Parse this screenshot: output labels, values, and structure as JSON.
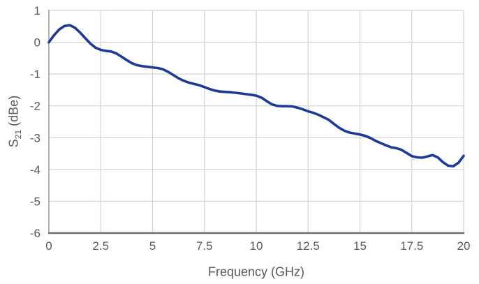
{
  "chart_data": {
    "type": "line",
    "title": "",
    "xlabel": "Frequency (GHz)",
    "ylabel_base": "S",
    "ylabel_sub": "21",
    "ylabel_rest": " (dBe)",
    "ylabel_text": "S21 (dBe)",
    "xlim": [
      0,
      20
    ],
    "ylim": [
      -6,
      1
    ],
    "x_ticks": [
      0,
      2.5,
      5,
      7.5,
      10,
      12.5,
      15,
      17.5,
      20
    ],
    "x_tick_labels": [
      "0",
      "2.5",
      "5",
      "7.5",
      "10",
      "12.5",
      "15",
      "17.5",
      "20"
    ],
    "y_ticks": [
      1,
      0,
      -1,
      -2,
      -3,
      -4,
      -5,
      -6
    ],
    "y_tick_labels": [
      "1",
      "0",
      "-1",
      "-2",
      "-3",
      "-4",
      "-5",
      "-6"
    ],
    "grid": true,
    "legend": "none",
    "series": [
      {
        "name": "S21",
        "points": [
          [
            0,
            0
          ],
          [
            0.25,
            0.22
          ],
          [
            0.5,
            0.4
          ],
          [
            0.75,
            0.51
          ],
          [
            1,
            0.54
          ],
          [
            1.25,
            0.46
          ],
          [
            1.5,
            0.31
          ],
          [
            1.75,
            0.13
          ],
          [
            2,
            -0.04
          ],
          [
            2.25,
            -0.17
          ],
          [
            2.5,
            -0.24
          ],
          [
            2.75,
            -0.27
          ],
          [
            3,
            -0.29
          ],
          [
            3.25,
            -0.35
          ],
          [
            3.5,
            -0.45
          ],
          [
            3.75,
            -0.56
          ],
          [
            4,
            -0.66
          ],
          [
            4.25,
            -0.72
          ],
          [
            4.5,
            -0.75
          ],
          [
            4.75,
            -0.77
          ],
          [
            5,
            -0.79
          ],
          [
            5.25,
            -0.81
          ],
          [
            5.5,
            -0.85
          ],
          [
            5.75,
            -0.93
          ],
          [
            6,
            -1.03
          ],
          [
            6.25,
            -1.13
          ],
          [
            6.5,
            -1.21
          ],
          [
            6.75,
            -1.27
          ],
          [
            7,
            -1.31
          ],
          [
            7.25,
            -1.35
          ],
          [
            7.5,
            -1.41
          ],
          [
            7.75,
            -1.47
          ],
          [
            8,
            -1.52
          ],
          [
            8.25,
            -1.55
          ],
          [
            8.5,
            -1.56
          ],
          [
            8.75,
            -1.57
          ],
          [
            9,
            -1.59
          ],
          [
            9.25,
            -1.61
          ],
          [
            9.5,
            -1.63
          ],
          [
            9.75,
            -1.65
          ],
          [
            10,
            -1.68
          ],
          [
            10.25,
            -1.74
          ],
          [
            10.5,
            -1.85
          ],
          [
            10.75,
            -1.95
          ],
          [
            11,
            -2
          ],
          [
            11.25,
            -2.01
          ],
          [
            11.5,
            -2.01
          ],
          [
            11.75,
            -2.02
          ],
          [
            12,
            -2.06
          ],
          [
            12.25,
            -2.11
          ],
          [
            12.5,
            -2.17
          ],
          [
            12.75,
            -2.22
          ],
          [
            13,
            -2.28
          ],
          [
            13.25,
            -2.36
          ],
          [
            13.5,
            -2.44
          ],
          [
            13.75,
            -2.57
          ],
          [
            14,
            -2.69
          ],
          [
            14.25,
            -2.78
          ],
          [
            14.5,
            -2.84
          ],
          [
            14.75,
            -2.87
          ],
          [
            15,
            -2.9
          ],
          [
            15.25,
            -2.94
          ],
          [
            15.5,
            -3.01
          ],
          [
            15.75,
            -3.1
          ],
          [
            16,
            -3.17
          ],
          [
            16.25,
            -3.24
          ],
          [
            16.5,
            -3.3
          ],
          [
            16.75,
            -3.33
          ],
          [
            17,
            -3.38
          ],
          [
            17.25,
            -3.48
          ],
          [
            17.5,
            -3.58
          ],
          [
            17.75,
            -3.62
          ],
          [
            18,
            -3.63
          ],
          [
            18.25,
            -3.59
          ],
          [
            18.5,
            -3.55
          ],
          [
            18.75,
            -3.62
          ],
          [
            19,
            -3.77
          ],
          [
            19.25,
            -3.88
          ],
          [
            19.5,
            -3.9
          ],
          [
            19.75,
            -3.79
          ],
          [
            20,
            -3.57
          ]
        ]
      }
    ],
    "colors": {
      "line": "#1c3a96",
      "grid": "#d6d6d6",
      "y_axis_line": "#a0a0a0",
      "x_axis_line": "#6e6e6e",
      "text": "#595959",
      "background": "#ffffff"
    }
  }
}
